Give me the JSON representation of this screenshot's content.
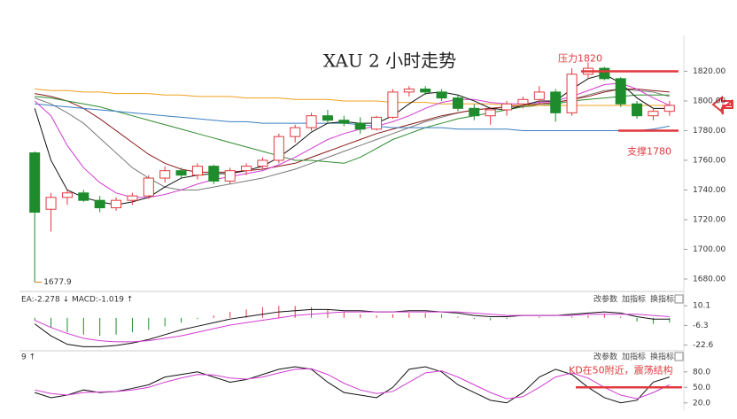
{
  "chart_data": [
    {
      "type": "candlestick",
      "title": "XAU 2 小时走势",
      "open": [
        1765,
        1727,
        1735,
        1738,
        1733,
        1728,
        1733,
        1736,
        1748,
        1753,
        1750,
        1756,
        1746,
        1753,
        1756,
        1760,
        1776,
        1782,
        1790,
        1787,
        1785,
        1781,
        1789,
        1806,
        1808,
        1806,
        1802,
        1795,
        1790,
        1794,
        1798,
        1801,
        1806,
        1792,
        1818,
        1822,
        1815,
        1798,
        1790,
        1793
      ],
      "high": [
        1766,
        1738,
        1740,
        1740,
        1736,
        1735,
        1738,
        1750,
        1756,
        1755,
        1758,
        1757,
        1755,
        1758,
        1762,
        1778,
        1784,
        1792,
        1794,
        1790,
        1789,
        1790,
        1808,
        1810,
        1810,
        1808,
        1804,
        1798,
        1796,
        1800,
        1803,
        1810,
        1808,
        1822,
        1826,
        1823,
        1816,
        1800,
        1795,
        1800
      ],
      "low": [
        1677.9,
        1712,
        1730,
        1732,
        1725,
        1726,
        1730,
        1734,
        1745,
        1748,
        1747,
        1744,
        1744,
        1750,
        1754,
        1758,
        1772,
        1780,
        1785,
        1783,
        1778,
        1780,
        1788,
        1803,
        1804,
        1800,
        1793,
        1787,
        1784,
        1790,
        1795,
        1798,
        1786,
        1790,
        1815,
        1814,
        1796,
        1788,
        1787,
        1790
      ],
      "close": [
        1725,
        1735,
        1738,
        1733,
        1728,
        1733,
        1736,
        1748,
        1753,
        1750,
        1756,
        1746,
        1753,
        1756,
        1760,
        1776,
        1782,
        1790,
        1787,
        1785,
        1781,
        1789,
        1806,
        1808,
        1806,
        1802,
        1795,
        1790,
        1794,
        1798,
        1801,
        1806,
        1792,
        1818,
        1822,
        1815,
        1798,
        1790,
        1793,
        1797
      ],
      "up_color": "#e0393e",
      "down_color": "#1e8c2c",
      "series": [
        {
          "color": "#7a7a7a",
          "values": [
            1802,
            1798,
            1792,
            1785,
            1775,
            1765,
            1755,
            1748,
            1742,
            1740,
            1740,
            1742,
            1744,
            1746,
            1748,
            1751,
            1754,
            1758,
            1762,
            1766,
            1770,
            1774,
            1778,
            1782,
            1786,
            1789,
            1792,
            1794,
            1795,
            1796,
            1797,
            1798,
            1799,
            1801,
            1804,
            1807,
            1808,
            1807,
            1806,
            1803
          ]
        },
        {
          "color": "#8b1a1a",
          "values": [
            1805,
            1803,
            1800,
            1795,
            1788,
            1780,
            1772,
            1764,
            1758,
            1754,
            1752,
            1752,
            1752,
            1753,
            1754,
            1756,
            1758,
            1762,
            1766,
            1770,
            1774,
            1778,
            1781,
            1784,
            1787,
            1790,
            1792,
            1794,
            1795,
            1796,
            1797,
            1798,
            1799,
            1801,
            1803,
            1806,
            1808,
            1808,
            1807,
            1806
          ]
        },
        {
          "color": "#2e8b2e",
          "values": [
            1803,
            1802,
            1800,
            1798,
            1796,
            1793,
            1790,
            1787,
            1784,
            1781,
            1778,
            1775,
            1772,
            1769,
            1766,
            1763,
            1760,
            1760,
            1759,
            1758,
            1762,
            1768,
            1774,
            1778,
            1782,
            1785,
            1788,
            1790,
            1792,
            1794,
            1796,
            1797,
            1798,
            1800,
            1801,
            1802,
            1803,
            1804,
            1804,
            1804
          ]
        },
        {
          "color": "#3a7fc1",
          "values": [
            1798,
            1797,
            1796,
            1795,
            1794,
            1793,
            1792,
            1791,
            1790,
            1789,
            1788,
            1787,
            1786,
            1786,
            1785,
            1785,
            1785,
            1785,
            1785,
            1785,
            1784,
            1783,
            1782,
            1782,
            1782,
            1782,
            1781,
            1781,
            1781,
            1781,
            1780,
            1780,
            1780,
            1780,
            1780,
            1780,
            1780,
            1780,
            1781,
            1783
          ]
        },
        {
          "color": "#f0a020",
          "values": [
            1808,
            1807,
            1807,
            1806,
            1806,
            1805,
            1805,
            1805,
            1804,
            1804,
            1803,
            1803,
            1803,
            1802,
            1802,
            1802,
            1801,
            1801,
            1801,
            1800,
            1800,
            1800,
            1799,
            1799,
            1799,
            1798,
            1798,
            1798,
            1798,
            1797,
            1797,
            1797,
            1797,
            1797,
            1797,
            1797,
            1797,
            1797,
            1797,
            1797
          ]
        },
        {
          "color": "#d23bd2",
          "values": [
            1800,
            1790,
            1770,
            1755,
            1745,
            1738,
            1735,
            1735,
            1737,
            1740,
            1744,
            1747,
            1749,
            1751,
            1753,
            1757,
            1762,
            1768,
            1774,
            1778,
            1781,
            1783,
            1786,
            1790,
            1795,
            1799,
            1801,
            1801,
            1799,
            1798,
            1798,
            1799,
            1800,
            1803,
            1807,
            1811,
            1812,
            1808,
            1802,
            1797
          ]
        },
        {
          "color": "#111111",
          "values": [
            1795,
            1760,
            1740,
            1735,
            1732,
            1730,
            1732,
            1735,
            1742,
            1748,
            1750,
            1751,
            1751,
            1753,
            1756,
            1762,
            1770,
            1779,
            1785,
            1786,
            1785,
            1785,
            1790,
            1798,
            1805,
            1806,
            1804,
            1800,
            1795,
            1794,
            1797,
            1800,
            1800,
            1808,
            1815,
            1818,
            1812,
            1802,
            1795,
            1795
          ]
        }
      ],
      "ylim": [
        1674,
        1834
      ],
      "yticks": [
        {
          "value": 1680,
          "label": "1680.00"
        },
        {
          "value": 1700,
          "label": "1700.00"
        },
        {
          "value": 1720,
          "label": "1720.00"
        },
        {
          "value": 1740,
          "label": "1740.00"
        },
        {
          "value": 1760,
          "label": "1760.00"
        },
        {
          "value": 1780,
          "label": "1780.00"
        },
        {
          "value": 1800,
          "label": "1800.00"
        },
        {
          "value": 1820,
          "label": "1820.00"
        }
      ],
      "low_label": {
        "value": 1677.9,
        "label": "1677.9"
      },
      "annotations": [
        {
          "text": "压力1820",
          "value": 1820,
          "color": "#e0393e"
        },
        {
          "text": "支撑1780",
          "value": 1780,
          "color": "#e0393e"
        }
      ]
    },
    {
      "type": "macd",
      "header": "EA:-2.278 ↓ MACD:-1.019 ↑",
      "buttons": [
        "改参数",
        "加指标",
        "换指标"
      ],
      "values": [
        -2,
        -8,
        -12,
        -14,
        -15,
        -14,
        -12,
        -10,
        -7,
        -4,
        -1,
        2,
        5,
        7,
        9,
        10,
        10,
        9,
        7,
        5,
        3,
        2,
        3,
        4,
        4,
        3,
        1,
        -1,
        -2,
        -1,
        0,
        1,
        0,
        1,
        2,
        3,
        1,
        -3,
        -5,
        -4
      ],
      "up_color": "#e0393e",
      "down_color": "#1e8c2c",
      "series": [
        {
          "color": "#111111",
          "values": [
            -5,
            -15,
            -22,
            -24,
            -24,
            -23,
            -21,
            -18,
            -14,
            -10,
            -7,
            -4,
            -1,
            1,
            3,
            5,
            6,
            7,
            7,
            6,
            6,
            5,
            5,
            6,
            6,
            5,
            4,
            2,
            1,
            1,
            2,
            2,
            2,
            3,
            4,
            5,
            4,
            1,
            -1,
            -1
          ]
        },
        {
          "color": "#d23bd2",
          "values": [
            -2,
            -8,
            -13,
            -17,
            -19,
            -20,
            -20,
            -19,
            -17,
            -15,
            -12,
            -9,
            -6,
            -4,
            -2,
            0,
            2,
            3,
            4,
            5,
            5,
            5,
            5,
            5,
            5,
            5,
            5,
            4,
            3,
            2,
            2,
            2,
            2,
            2,
            3,
            3,
            3,
            3,
            2,
            1
          ]
        }
      ],
      "ylim": [
        -26.7,
        17.6
      ],
      "yticks": [
        10.1,
        -6.3,
        -22.6
      ]
    },
    {
      "type": "line",
      "header": "9 ↑",
      "buttons": [
        "改参数",
        "加指标",
        "换指标"
      ],
      "series": [
        {
          "color": "#111111",
          "values": [
            40,
            30,
            35,
            45,
            40,
            42,
            48,
            55,
            70,
            75,
            80,
            70,
            60,
            65,
            75,
            85,
            90,
            85,
            60,
            40,
            35,
            30,
            50,
            85,
            90,
            80,
            55,
            40,
            25,
            20,
            40,
            70,
            85,
            75,
            50,
            30,
            20,
            25,
            60,
            70
          ]
        },
        {
          "color": "#d23bd2",
          "values": [
            45,
            38,
            35,
            40,
            41,
            42,
            45,
            50,
            60,
            68,
            75,
            74,
            68,
            66,
            70,
            78,
            85,
            86,
            75,
            58,
            45,
            38,
            42,
            60,
            78,
            82,
            70,
            55,
            40,
            28,
            32,
            50,
            70,
            78,
            68,
            50,
            35,
            28,
            40,
            55
          ]
        }
      ],
      "ylim": [
        11,
        114
      ],
      "yticks": [
        {
          "value": 80,
          "label": "80.0"
        },
        {
          "value": 50,
          "label": "50.0"
        },
        {
          "value": 20,
          "label": "20.0"
        }
      ],
      "annotations": [
        {
          "text": "KD在50附近，震荡结构",
          "value": 50,
          "color": "#e0393e"
        }
      ]
    }
  ]
}
